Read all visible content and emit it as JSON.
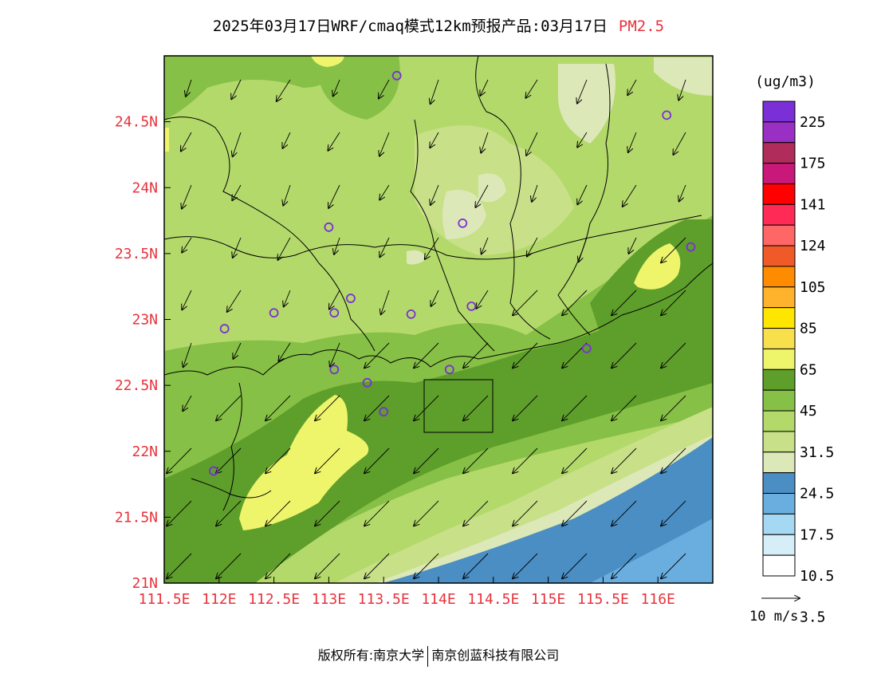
{
  "title": {
    "main": "2025年03月17日WRF/cmaq模式12km预报产品:03月17日",
    "pollutant": "PM2.5"
  },
  "map": {
    "lon_ticks": [
      "111.5E",
      "112E",
      "112.5E",
      "113E",
      "113.5E",
      "114E",
      "114.5E",
      "115E",
      "115.5E",
      "116E"
    ],
    "lat_ticks": [
      "21N",
      "21.5N",
      "22N",
      "22.5N",
      "23N",
      "23.5N",
      "24N",
      "24.5N"
    ],
    "tick_label_color": "#e8333c",
    "stations": [
      {
        "lon": 113.62,
        "lat": 24.85
      },
      {
        "lon": 116.08,
        "lat": 24.55
      },
      {
        "lon": 113.0,
        "lat": 23.7
      },
      {
        "lon": 114.22,
        "lat": 23.73
      },
      {
        "lon": 116.3,
        "lat": 23.55
      },
      {
        "lon": 113.2,
        "lat": 23.16
      },
      {
        "lon": 112.5,
        "lat": 23.05
      },
      {
        "lon": 113.05,
        "lat": 23.05
      },
      {
        "lon": 113.75,
        "lat": 23.04
      },
      {
        "lon": 114.3,
        "lat": 23.1
      },
      {
        "lon": 112.05,
        "lat": 22.93
      },
      {
        "lon": 115.35,
        "lat": 22.78
      },
      {
        "lon": 113.05,
        "lat": 22.62
      },
      {
        "lon": 114.1,
        "lat": 22.62
      },
      {
        "lon": 113.35,
        "lat": 22.52
      },
      {
        "lon": 113.5,
        "lat": 22.3
      },
      {
        "lon": 111.95,
        "lat": 21.85
      }
    ]
  },
  "legend": {
    "unit": "(ug/m3)",
    "labels": [
      "225",
      "175",
      "141",
      "124",
      "105",
      "85",
      "65",
      "45",
      "31.5",
      "24.5",
      "17.5",
      "10.5",
      "3.5"
    ],
    "colors": [
      "#7b2fd6",
      "#9a2fc4",
      "#b02c5a",
      "#c8187a",
      "#ff0000",
      "#ff2a55",
      "#ff6666",
      "#f05a28",
      "#ff8c00",
      "#ffb22c",
      "#ffe600",
      "#f7e04b",
      "#eef56b",
      "#5e9e2b",
      "#86c046",
      "#b4d96b",
      "#c8e088",
      "#dde8b8",
      "#4a8ec4",
      "#6aaee0",
      "#a5d8f2",
      "#d6eef8",
      "#ffffff"
    ]
  },
  "wind": {
    "scale_label": "10 m/s"
  },
  "footer": {
    "left": "版权所有:南京大学",
    "right": "南京创蓝科技有限公司"
  }
}
